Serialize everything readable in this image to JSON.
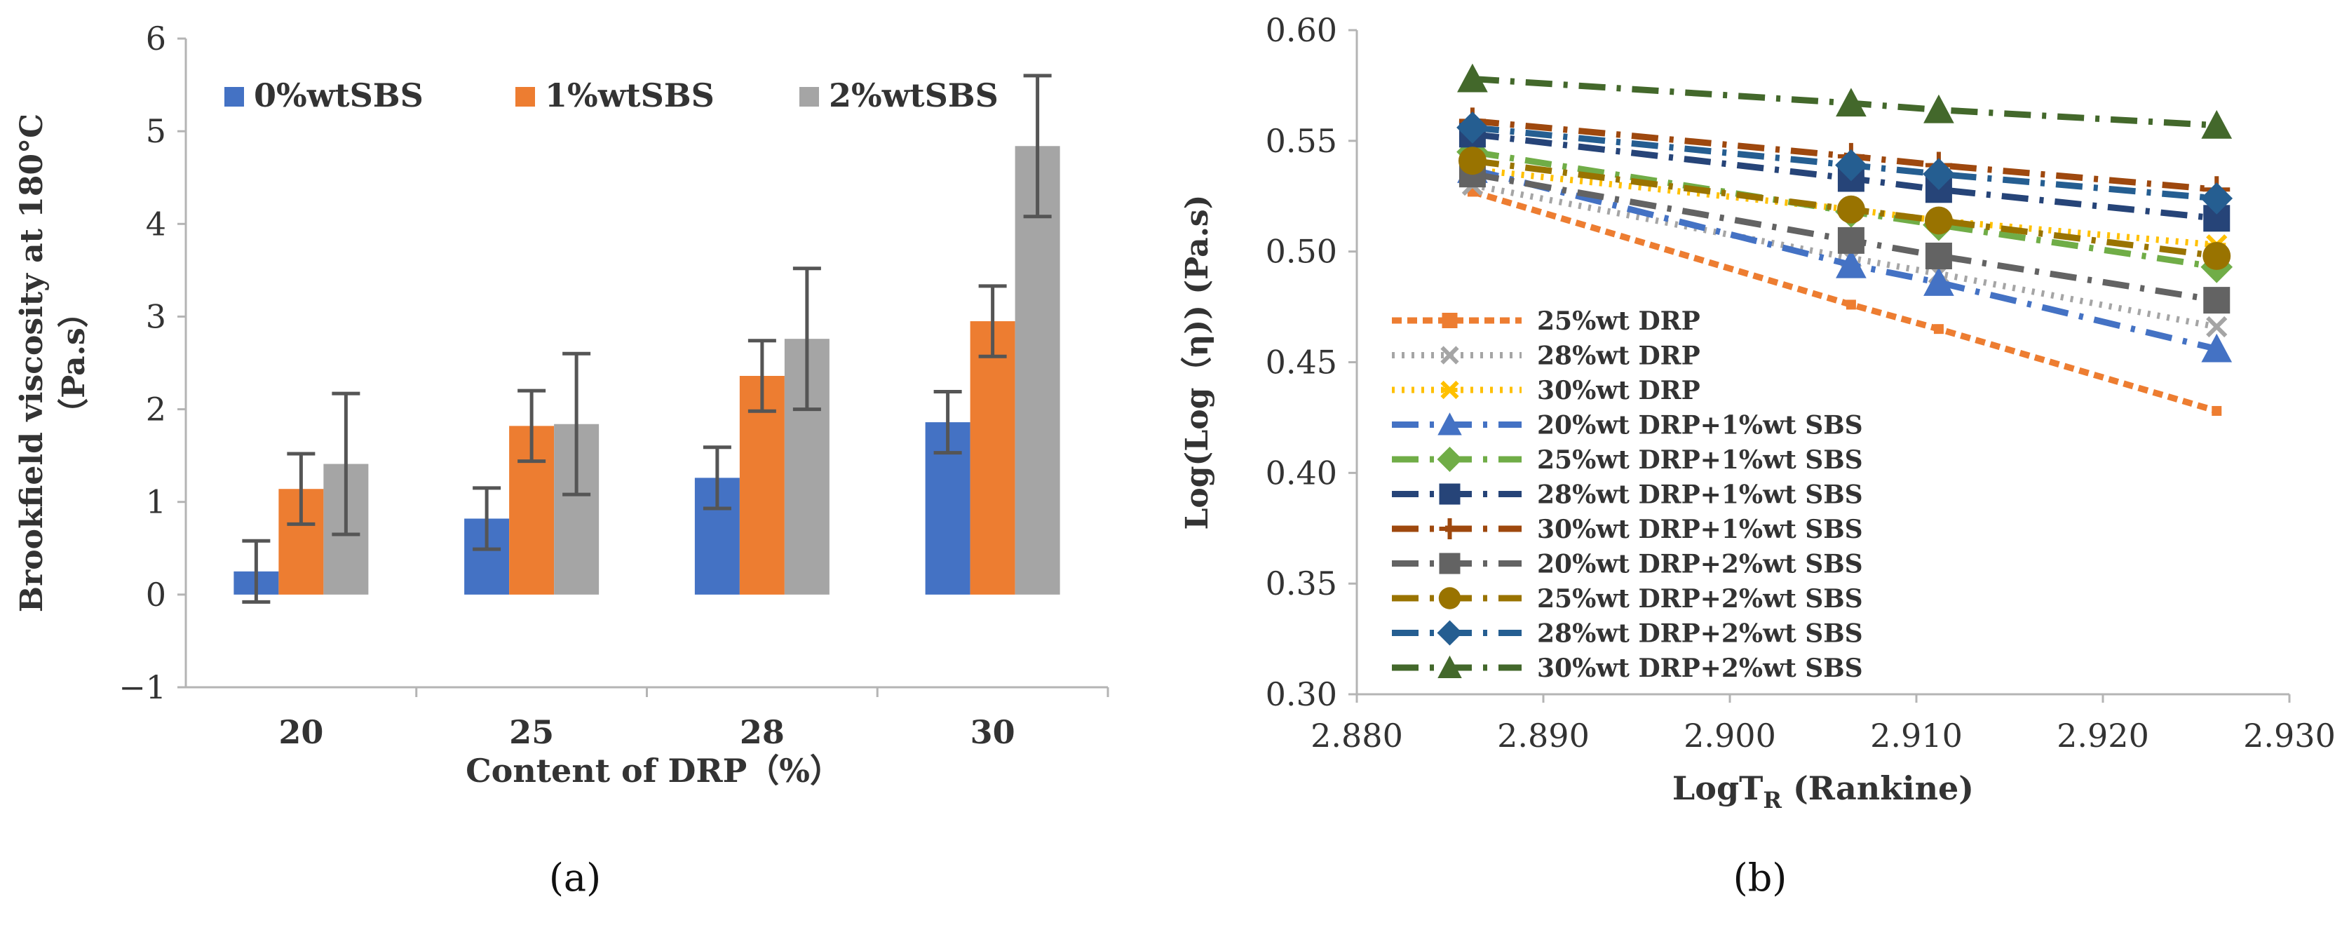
{
  "chart_data": [
    {
      "panel": "(a)",
      "type": "bar",
      "categories": [
        "20",
        "25",
        "28",
        "30"
      ],
      "series": [
        {
          "name": "0%wtSBS",
          "color": "#4472C4",
          "values": [
            0.25,
            0.82,
            1.26,
            1.86
          ],
          "errors": [
            0.33,
            0.33,
            0.33,
            0.33
          ]
        },
        {
          "name": "1%wtSBS",
          "color": "#ED7D31",
          "values": [
            1.14,
            1.82,
            2.36,
            2.95
          ],
          "errors": [
            0.38,
            0.38,
            0.38,
            0.38
          ]
        },
        {
          "name": "2%wtSBS",
          "color": "#A5A5A5",
          "values": [
            1.41,
            1.84,
            2.76,
            4.84
          ],
          "errors": [
            0.76,
            0.76,
            0.76,
            0.76
          ]
        }
      ],
      "xlabel": "Content of DRP（%）",
      "ylabel_line1": "Brookfield viscosity at 180°C",
      "ylabel_line2": "（Pa.s）",
      "ylim": [
        -1,
        6
      ],
      "yticks": [
        "−1",
        "0",
        "1",
        "2",
        "3",
        "4",
        "5",
        "6"
      ],
      "legend_position": "top",
      "grid": false
    },
    {
      "panel": "(b)",
      "type": "line",
      "xlabel_main": "LogT",
      "xlabel_sub": "R",
      "xlabel_rest": " (Rankine)",
      "ylabel": "Log(Log（η)) (Pa.s)",
      "xlim": [
        2.88,
        2.93
      ],
      "ylim": [
        0.3,
        0.6
      ],
      "xticks": [
        "2.880",
        "2.890",
        "2.900",
        "2.910",
        "2.920",
        "2.930"
      ],
      "yticks": [
        "0.30",
        "0.35",
        "0.40",
        "0.45",
        "0.50",
        "0.55",
        "0.60"
      ],
      "legend_position": "left-lower",
      "grid": false,
      "series": [
        {
          "name": "25%wt DRP",
          "color": "#ED7D31",
          "marker": "square",
          "x": [
            2.8862,
            2.9065,
            2.9112,
            2.9261
          ],
          "y": [
            0.527,
            0.476,
            0.465,
            0.428
          ]
        },
        {
          "name": "28%wt DRP",
          "color": "#A5A5A5",
          "marker": "x",
          "x": [
            2.8862,
            2.9065,
            2.9112,
            2.9261
          ],
          "y": [
            0.53,
            0.497,
            0.49,
            0.466
          ]
        },
        {
          "name": "30%wt DRP",
          "color": "#FFC000",
          "marker": "asterisk",
          "x": [
            2.8862,
            2.9065,
            2.9112,
            2.9261
          ],
          "y": [
            0.537,
            0.519,
            0.514,
            0.503
          ]
        },
        {
          "name": "20%wt DRP+1%wt SBS",
          "color": "#4472C4",
          "marker": "triangle",
          "x": [
            2.8862,
            2.9065,
            2.9112,
            2.9261
          ],
          "y": [
            0.537,
            0.494,
            0.486,
            0.456
          ]
        },
        {
          "name": "25%wt DRP+1%wt SBS",
          "color": "#70AD47",
          "marker": "diamond",
          "x": [
            2.8862,
            2.9065,
            2.9112,
            2.9261
          ],
          "y": [
            0.545,
            0.518,
            0.512,
            0.493
          ]
        },
        {
          "name": "28%wt DRP+1%wt SBS",
          "color": "#264478",
          "marker": "square",
          "x": [
            2.8862,
            2.9065,
            2.9112,
            2.9261
          ],
          "y": [
            0.553,
            0.533,
            0.528,
            0.515
          ]
        },
        {
          "name": "30%wt DRP+1%wt SBS",
          "color": "#9E480E",
          "marker": "plus",
          "x": [
            2.8862,
            2.9065,
            2.9112,
            2.9261
          ],
          "y": [
            0.559,
            0.543,
            0.539,
            0.528
          ]
        },
        {
          "name": "20%wt DRP+2%wt SBS",
          "color": "#636363",
          "marker": "square",
          "x": [
            2.8862,
            2.9065,
            2.9112,
            2.9261
          ],
          "y": [
            0.535,
            0.505,
            0.498,
            0.478
          ]
        },
        {
          "name": "25%wt DRP+2%wt SBS",
          "color": "#997300",
          "marker": "circle",
          "x": [
            2.8862,
            2.9065,
            2.9112,
            2.9261
          ],
          "y": [
            0.541,
            0.519,
            0.514,
            0.498
          ]
        },
        {
          "name": "28%wt DRP+2%wt SBS",
          "color": "#255E91",
          "marker": "diamond",
          "x": [
            2.8862,
            2.9065,
            2.9112,
            2.9261
          ],
          "y": [
            0.556,
            0.539,
            0.535,
            0.524
          ]
        },
        {
          "name": "30%wt DRP+2%wt SBS",
          "color": "#43682B",
          "marker": "triangle",
          "x": [
            2.8862,
            2.9065,
            2.9112,
            2.9261
          ],
          "y": [
            0.578,
            0.567,
            0.564,
            0.557
          ]
        }
      ]
    }
  ]
}
